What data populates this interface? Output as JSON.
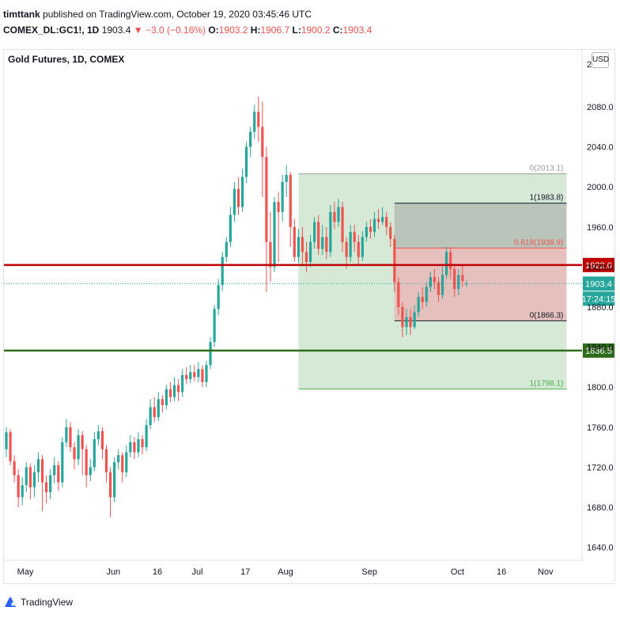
{
  "header": {
    "user": "timttank",
    "published": "published on TradingView.com, October 19, 2020 03:45:46 UTC",
    "symbol": "COMEX_DL:GC1!, 1D",
    "last": "1903.4",
    "arrow": "▼",
    "change": "−3.0 (−0.16%)",
    "o_label": "O:",
    "o_value": "1903.2",
    "h_label": "H:",
    "h_value": "1906.7",
    "l_label": "L:",
    "l_value": "1900.2",
    "c_label": "C:",
    "c_value": "1903.4"
  },
  "pane_title": "Gold Futures, 1D, COMEX",
  "currency_button": "USD",
  "axis_top_label": "2",
  "branding": "TradingView",
  "colors": {
    "up": "#26a69a",
    "down": "#ef5350",
    "resistance": "#c00000",
    "support": "#2e6b1a",
    "fib_box_green": "#d4e7d4",
    "fib_box_gray": "#999999",
    "fib_box_red": "#e8b9b9",
    "last_price": "#26a69a"
  },
  "chart_data": {
    "type": "candlestick",
    "title": "Gold Futures, 1D, COMEX",
    "ylim": [
      1616,
      2120
    ],
    "price_ticks": [
      "2080.0",
      "2040.0",
      "2000.0",
      "1960.0",
      "1920.0",
      "1880.0",
      "1840.0",
      "1800.0",
      "1760.0",
      "1720.0",
      "1680.0",
      "1640.0"
    ],
    "price_tick_values": [
      2080,
      2040,
      2000,
      1960,
      1920,
      1880,
      1840,
      1800,
      1760,
      1720,
      1680,
      1640
    ],
    "time_ticks": [
      {
        "label": "May",
        "index": 0
      },
      {
        "label": "Jun",
        "index": 22
      },
      {
        "label": "16",
        "index": 33
      },
      {
        "label": "Jul",
        "index": 43
      },
      {
        "label": "17",
        "index": 55
      },
      {
        "label": "Aug",
        "index": 65
      },
      {
        "label": "Sep",
        "index": 86
      },
      {
        "label": "Oct",
        "index": 108
      },
      {
        "label": "16",
        "index": 119
      },
      {
        "label": "Nov",
        "index": 130
      }
    ],
    "horizontal_lines": [
      {
        "label": "1922.0",
        "value": 1922.0,
        "color": "#c00000"
      },
      {
        "label": "1836.5",
        "value": 1836.5,
        "color": "#2e6b1a"
      }
    ],
    "last_price": {
      "label": "1903.4",
      "value": 1903.4,
      "countdown": "17:24:15"
    },
    "fib_big": {
      "from_index": 73,
      "to_index": 140,
      "levels": [
        {
          "label": "0(2013.1)",
          "value": 2013.1
        },
        {
          "label": "1(1798.1)",
          "value": 1798.1
        }
      ]
    },
    "fib_small": {
      "from_index": 97,
      "to_index": 140,
      "levels": [
        {
          "label": "1(1983.8)",
          "value": 1983.8
        },
        {
          "label": "0.618(1938.9)",
          "value": 1938.9
        },
        {
          "label": "0(1866.3)",
          "value": 1866.3
        }
      ]
    },
    "candles": [
      [
        1738,
        1755,
        1760,
        1730
      ],
      [
        1755,
        1726,
        1758,
        1722
      ],
      [
        1726,
        1712,
        1732,
        1705
      ],
      [
        1712,
        1690,
        1718,
        1680
      ],
      [
        1690,
        1702,
        1710,
        1682
      ],
      [
        1702,
        1720,
        1725,
        1695
      ],
      [
        1720,
        1700,
        1724,
        1688
      ],
      [
        1700,
        1715,
        1722,
        1690
      ],
      [
        1715,
        1728,
        1735,
        1705
      ],
      [
        1728,
        1705,
        1732,
        1676
      ],
      [
        1705,
        1695,
        1712,
        1684
      ],
      [
        1695,
        1712,
        1718,
        1688
      ],
      [
        1712,
        1722,
        1730,
        1704
      ],
      [
        1722,
        1705,
        1726,
        1696
      ],
      [
        1705,
        1745,
        1750,
        1700
      ],
      [
        1745,
        1760,
        1768,
        1740
      ],
      [
        1760,
        1740,
        1765,
        1735
      ],
      [
        1740,
        1728,
        1745,
        1718
      ],
      [
        1728,
        1752,
        1758,
        1722
      ],
      [
        1752,
        1738,
        1756,
        1712
      ],
      [
        1738,
        1712,
        1742,
        1700
      ],
      [
        1712,
        1720,
        1728,
        1706
      ],
      [
        1720,
        1748,
        1755,
        1716
      ],
      [
        1748,
        1756,
        1762,
        1742
      ],
      [
        1756,
        1738,
        1760,
        1728
      ],
      [
        1738,
        1715,
        1742,
        1705
      ],
      [
        1715,
        1690,
        1720,
        1670
      ],
      [
        1690,
        1725,
        1730,
        1685
      ],
      [
        1725,
        1732,
        1738,
        1718
      ],
      [
        1732,
        1715,
        1735,
        1705
      ],
      [
        1715,
        1735,
        1742,
        1710
      ],
      [
        1735,
        1745,
        1752,
        1730
      ],
      [
        1745,
        1735,
        1750,
        1728
      ],
      [
        1735,
        1748,
        1755,
        1730
      ],
      [
        1748,
        1740,
        1752,
        1733
      ],
      [
        1740,
        1762,
        1768,
        1736
      ],
      [
        1762,
        1780,
        1788,
        1758
      ],
      [
        1780,
        1770,
        1790,
        1765
      ],
      [
        1770,
        1788,
        1795,
        1766
      ],
      [
        1788,
        1782,
        1792,
        1775
      ],
      [
        1782,
        1798,
        1802,
        1778
      ],
      [
        1798,
        1790,
        1805,
        1785
      ],
      [
        1790,
        1802,
        1810,
        1786
      ],
      [
        1802,
        1795,
        1808,
        1786
      ],
      [
        1795,
        1812,
        1818,
        1790
      ],
      [
        1812,
        1808,
        1820,
        1803
      ],
      [
        1808,
        1815,
        1822,
        1804
      ],
      [
        1815,
        1810,
        1822,
        1806
      ],
      [
        1810,
        1818,
        1825,
        1805
      ],
      [
        1818,
        1805,
        1822,
        1800
      ],
      [
        1805,
        1822,
        1826,
        1800
      ],
      [
        1822,
        1845,
        1850,
        1818
      ],
      [
        1845,
        1878,
        1882,
        1840
      ],
      [
        1878,
        1902,
        1908,
        1872
      ],
      [
        1902,
        1930,
        1935,
        1896
      ],
      [
        1930,
        1945,
        1950,
        1925
      ],
      [
        1945,
        1972,
        1980,
        1940
      ],
      [
        1972,
        1998,
        2005,
        1965
      ],
      [
        1998,
        1980,
        2010,
        1972
      ],
      [
        1980,
        2010,
        2018,
        1975
      ],
      [
        2010,
        2040,
        2045,
        2004
      ],
      [
        2040,
        2055,
        2060,
        2030
      ],
      [
        2055,
        2075,
        2082,
        2048
      ],
      [
        2075,
        2060,
        2090,
        2045
      ],
      [
        2060,
        2030,
        2085,
        1990
      ],
      [
        2030,
        1945,
        2040,
        1895
      ],
      [
        1945,
        1920,
        1975,
        1905
      ],
      [
        1920,
        1985,
        1990,
        1915
      ],
      [
        1985,
        1975,
        1995,
        1925
      ],
      [
        1975,
        2005,
        2012,
        1965
      ],
      [
        2005,
        2012,
        2022,
        1990
      ],
      [
        2012,
        1960,
        2015,
        1940
      ],
      [
        1960,
        1930,
        1968,
        1925
      ],
      [
        1930,
        1950,
        1958,
        1924
      ],
      [
        1950,
        1935,
        1960,
        1922
      ],
      [
        1935,
        1925,
        1945,
        1915
      ],
      [
        1925,
        1945,
        1952,
        1920
      ],
      [
        1945,
        1965,
        1970,
        1938
      ],
      [
        1965,
        1938,
        1972,
        1932
      ],
      [
        1938,
        1950,
        1962,
        1932
      ],
      [
        1950,
        1935,
        1960,
        1928
      ],
      [
        1935,
        1975,
        1982,
        1930
      ],
      [
        1975,
        1965,
        1985,
        1958
      ],
      [
        1965,
        1980,
        1988,
        1960
      ],
      [
        1980,
        1945,
        1985,
        1935
      ],
      [
        1945,
        1930,
        1950,
        1918
      ],
      [
        1930,
        1955,
        1962,
        1925
      ],
      [
        1955,
        1945,
        1962,
        1935
      ],
      [
        1945,
        1930,
        1952,
        1922
      ],
      [
        1930,
        1950,
        1956,
        1926
      ],
      [
        1950,
        1960,
        1965,
        1945
      ],
      [
        1960,
        1955,
        1968,
        1948
      ],
      [
        1955,
        1968,
        1975,
        1950
      ],
      [
        1968,
        1965,
        1978,
        1958
      ],
      [
        1965,
        1970,
        1980,
        1962
      ],
      [
        1970,
        1960,
        1975,
        1952
      ],
      [
        1960,
        1948,
        1965,
        1940
      ],
      [
        1948,
        1905,
        1952,
        1895
      ],
      [
        1905,
        1880,
        1910,
        1872
      ],
      [
        1880,
        1860,
        1885,
        1850
      ],
      [
        1860,
        1870,
        1878,
        1852
      ],
      [
        1870,
        1860,
        1878,
        1852
      ],
      [
        1860,
        1875,
        1882,
        1858
      ],
      [
        1875,
        1890,
        1895,
        1870
      ],
      [
        1890,
        1885,
        1900,
        1878
      ],
      [
        1885,
        1900,
        1905,
        1880
      ],
      [
        1900,
        1910,
        1915,
        1895
      ],
      [
        1910,
        1905,
        1918,
        1898
      ],
      [
        1905,
        1892,
        1910,
        1885
      ],
      [
        1892,
        1912,
        1920,
        1888
      ],
      [
        1912,
        1935,
        1940,
        1908
      ],
      [
        1935,
        1918,
        1940,
        1908
      ],
      [
        1918,
        1898,
        1922,
        1890
      ],
      [
        1898,
        1912,
        1918,
        1892
      ],
      [
        1912,
        1906,
        1922,
        1900
      ],
      [
        1903.2,
        1903.4,
        1906.7,
        1900.2
      ]
    ]
  }
}
